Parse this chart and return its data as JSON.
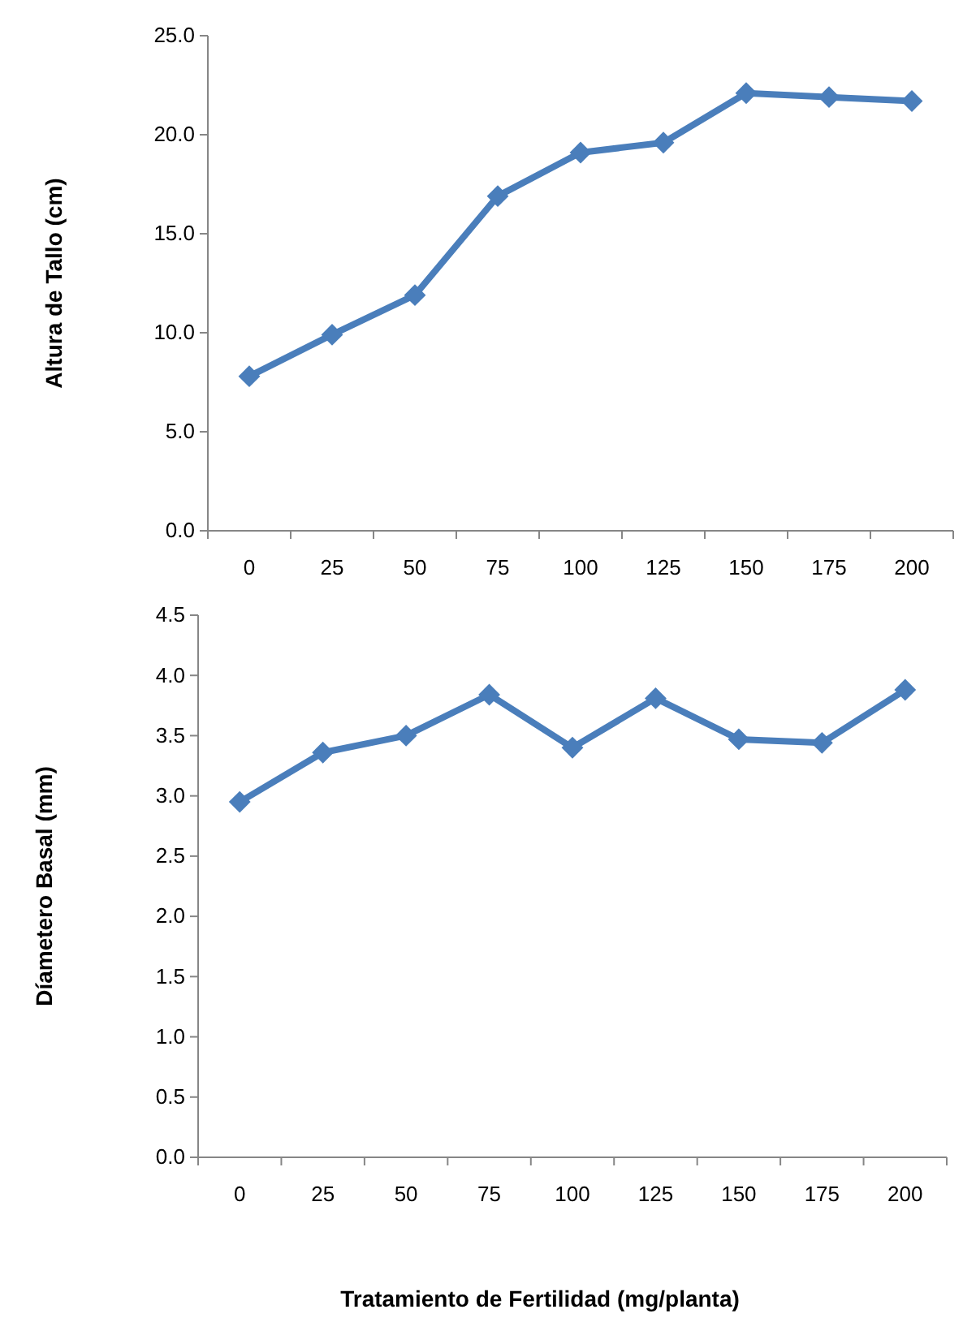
{
  "chart_data": [
    {
      "type": "line",
      "ylabel": "Altura de Tallo (cm)",
      "categories": [
        "0",
        "25",
        "50",
        "75",
        "100",
        "125",
        "150",
        "175",
        "200"
      ],
      "series": [
        {
          "color": "#4a7ebb",
          "values": [
            7.8,
            9.9,
            11.9,
            16.9,
            19.1,
            19.6,
            22.1,
            21.9,
            21.7
          ]
        }
      ],
      "ylim": [
        0,
        25
      ],
      "yticks": [
        {
          "value": 0,
          "label": "0.0"
        },
        {
          "value": 5,
          "label": "5.0"
        },
        {
          "value": 10,
          "label": "10.0"
        },
        {
          "value": 15,
          "label": "15.0"
        },
        {
          "value": 20,
          "label": "20.0"
        },
        {
          "value": 25,
          "label": "25.0"
        }
      ],
      "marker": "diamond",
      "line_style": "solid"
    },
    {
      "type": "line",
      "xlabel": "Tratamiento de Fertilidad (mg/planta)",
      "ylabel": "Díametero Basal (mm)",
      "categories": [
        "0",
        "25",
        "50",
        "75",
        "100",
        "125",
        "150",
        "175",
        "200"
      ],
      "series": [
        {
          "color": "#4a7ebb",
          "values": [
            2.95,
            3.36,
            3.5,
            3.84,
            3.4,
            3.81,
            3.47,
            3.44,
            3.88
          ]
        }
      ],
      "ylim": [
        0,
        4.5
      ],
      "yticks": [
        {
          "value": 0,
          "label": "0.0"
        },
        {
          "value": 0.5,
          "label": "0.5"
        },
        {
          "value": 1,
          "label": "1.0"
        },
        {
          "value": 1.5,
          "label": "1.5"
        },
        {
          "value": 2,
          "label": "2.0"
        },
        {
          "value": 2.5,
          "label": "2.5"
        },
        {
          "value": 3,
          "label": "3.0"
        },
        {
          "value": 3.5,
          "label": "3.5"
        },
        {
          "value": 4,
          "label": "4.0"
        },
        {
          "value": 4.5,
          "label": "4.5"
        }
      ],
      "marker": "diamond",
      "line_style": "solid"
    }
  ]
}
